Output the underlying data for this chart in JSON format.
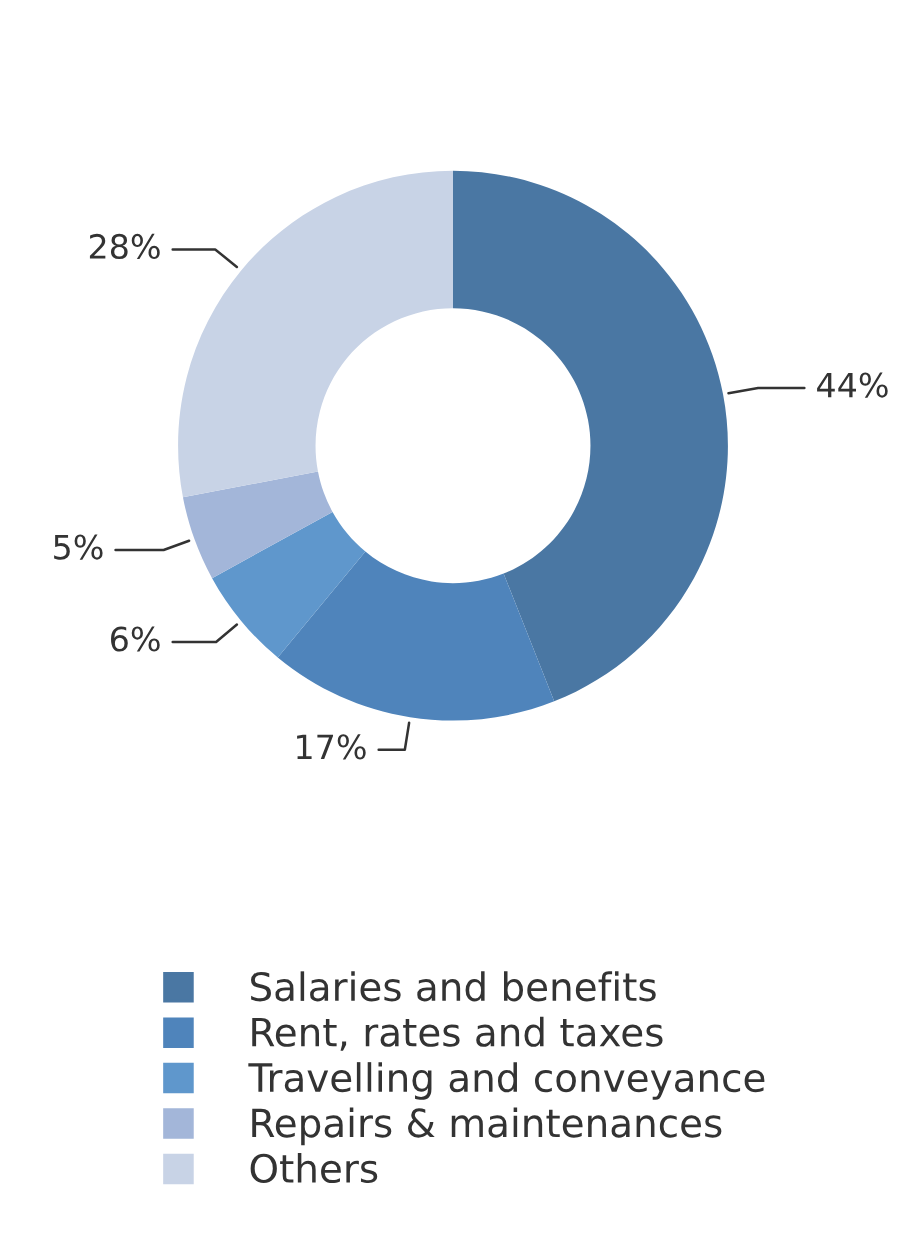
{
  "chart_data": {
    "type": "donut",
    "categories": [
      "Salaries and benefits",
      "Rent, rates and taxes",
      "Travelling and conveyance",
      "Repairs & maintenances",
      "Others"
    ],
    "values": [
      44,
      17,
      6,
      5,
      28
    ],
    "value_labels": [
      "44%",
      "17%",
      "6%",
      "5%",
      "28%"
    ],
    "colors": [
      "#4a77a3",
      "#4f84bb",
      "#5f97cc",
      "#a3b6d9",
      "#c8d3e6"
    ],
    "legend": "bottom"
  }
}
